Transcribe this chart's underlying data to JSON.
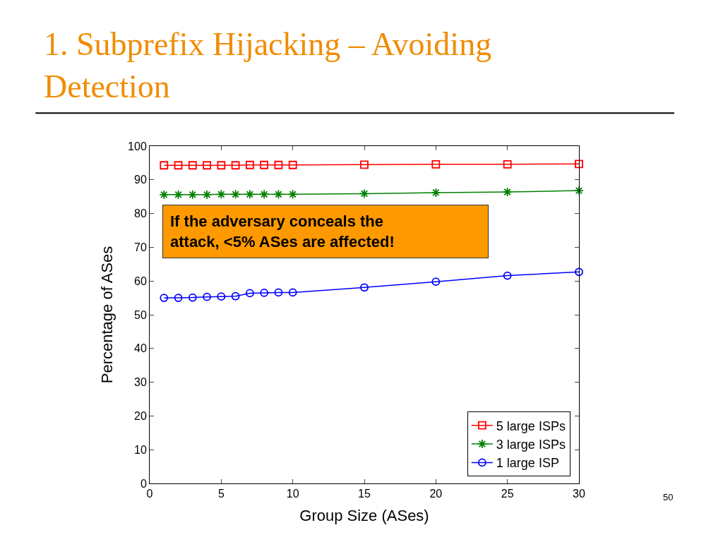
{
  "chart_data": {
    "type": "line",
    "title": "1. Subprefix Hijacking – Avoiding Detection",
    "xlabel": "Group Size (ASes)",
    "ylabel": "Percentage of ASes",
    "x": [
      1,
      2,
      3,
      4,
      5,
      6,
      7,
      8,
      9,
      10,
      15,
      20,
      25,
      30
    ],
    "series": [
      {
        "name": "5 large ISPs",
        "color": "#ff0000",
        "marker": "square",
        "values": [
          94.3,
          94.3,
          94.3,
          94.3,
          94.3,
          94.3,
          94.4,
          94.4,
          94.4,
          94.4,
          94.5,
          94.6,
          94.6,
          94.7
        ]
      },
      {
        "name": "3 large ISPs",
        "color": "#008000",
        "marker": "cross",
        "values": [
          85.6,
          85.6,
          85.6,
          85.6,
          85.7,
          85.7,
          85.7,
          85.7,
          85.7,
          85.7,
          85.9,
          86.2,
          86.4,
          86.8
        ]
      },
      {
        "name": "1 large ISP",
        "color": "#0000ff",
        "marker": "circle",
        "values": [
          55.0,
          55.0,
          55.1,
          55.3,
          55.4,
          55.5,
          56.4,
          56.5,
          56.6,
          56.6,
          58.1,
          59.8,
          61.6,
          62.7
        ]
      }
    ],
    "xlim": [
      0,
      30
    ],
    "xticks": [
      0,
      5,
      10,
      15,
      20,
      25,
      30
    ],
    "ylim": [
      0,
      100
    ],
    "yticks": [
      0,
      10,
      20,
      30,
      40,
      50,
      60,
      70,
      80,
      90,
      100
    ],
    "legend": "bottom right",
    "line_style": "solid",
    "annotations": [
      "If the adversary conceals the attack, <5% ASes are affected!",
      "50"
    ]
  }
}
